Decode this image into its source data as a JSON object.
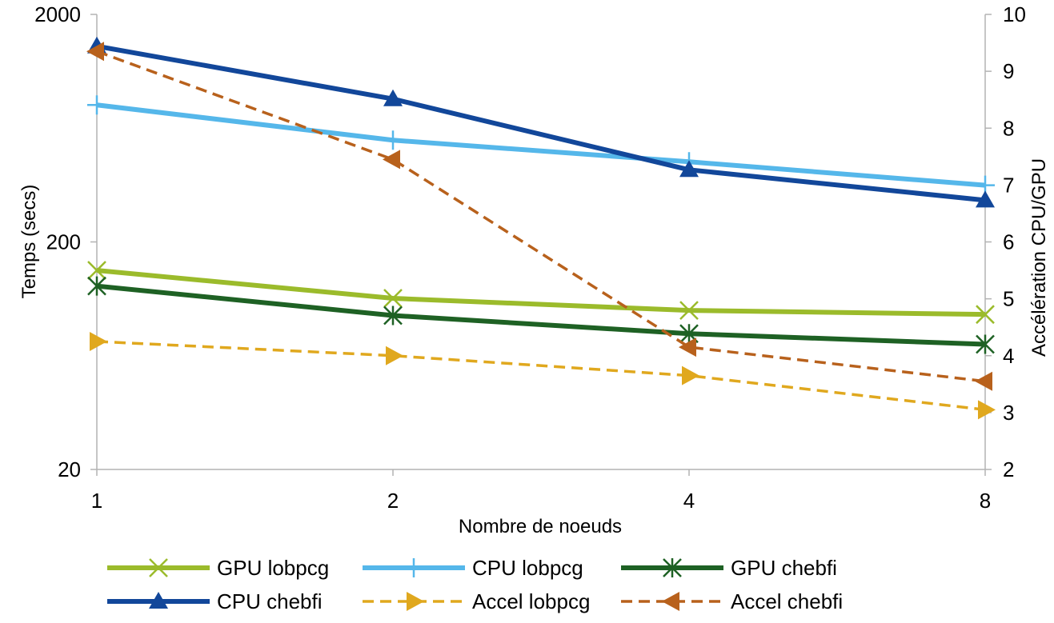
{
  "chart_data": {
    "type": "line",
    "categories": [
      "1",
      "2",
      "4",
      "8"
    ],
    "x": [
      1,
      2,
      4,
      8
    ],
    "xlabel": "Nombre de noeuds",
    "ylabel": "Temps (secs)",
    "y2label": "Accélération CPU/GPU",
    "y_scale": "log",
    "ylim": [
      20,
      2000
    ],
    "y_ticks": [
      "20",
      "200",
      "2000"
    ],
    "y2lim": [
      2,
      10
    ],
    "y2_ticks": [
      "2",
      "3",
      "4",
      "5",
      "6",
      "7",
      "8",
      "9",
      "10"
    ],
    "grid": false,
    "legend_position": "bottom",
    "series": [
      {
        "name": "GPU lobpcg",
        "axis": "left",
        "color": "#9bbb2b",
        "dash": "solid",
        "marker": "x",
        "values": [
          150,
          113,
          100,
          96
        ]
      },
      {
        "name": "CPU lobpcg",
        "axis": "left",
        "color": "#55b7ea",
        "dash": "solid",
        "marker": "plus",
        "values": [
          800,
          560,
          450,
          355
        ]
      },
      {
        "name": "GPU chebfi",
        "axis": "left",
        "color": "#1e6124",
        "dash": "solid",
        "marker": "asterisk",
        "values": [
          128,
          95,
          79,
          71
        ]
      },
      {
        "name": "CPU chebfi",
        "axis": "left",
        "color": "#12479a",
        "dash": "solid",
        "marker": "triangle-up",
        "values": [
          1450,
          850,
          415,
          305
        ]
      },
      {
        "name": "Accel lobpcg",
        "axis": "right",
        "color": "#e0a81e",
        "dash": "dashed",
        "marker": "triangle-right",
        "values": [
          4.25,
          4.0,
          3.65,
          3.05
        ]
      },
      {
        "name": "Accel chebfi",
        "axis": "right",
        "color": "#b8611c",
        "dash": "dashed",
        "marker": "triangle-left",
        "values": [
          9.35,
          7.45,
          4.15,
          3.55
        ]
      }
    ]
  }
}
